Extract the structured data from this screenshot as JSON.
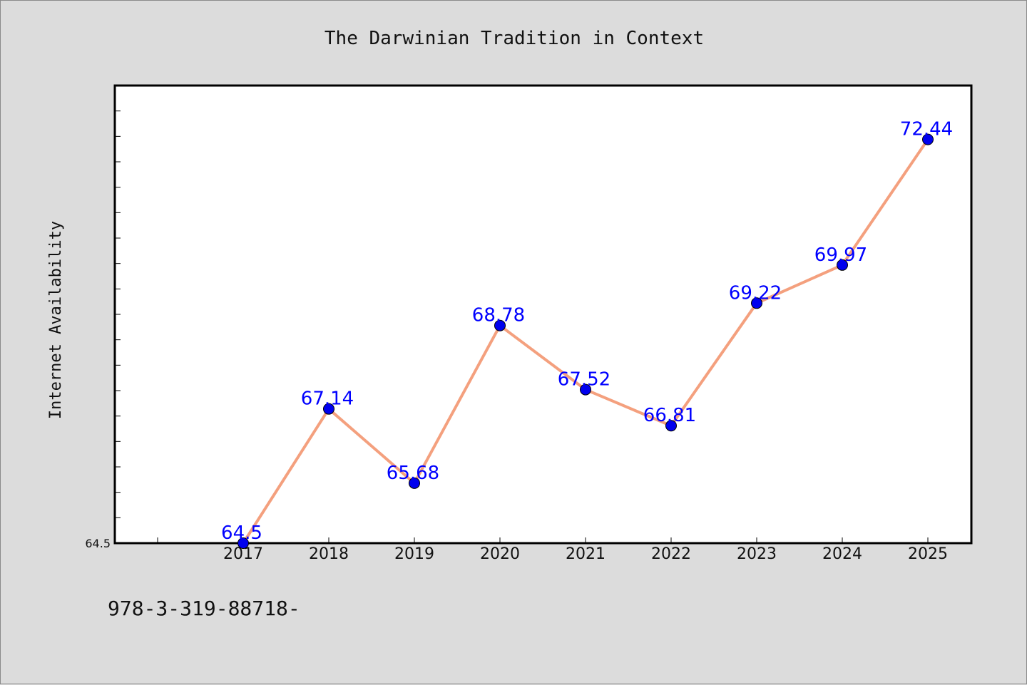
{
  "chart_data": {
    "type": "line",
    "title": "The Darwinian Tradition in Context",
    "xlabel": "",
    "ylabel": "Internet Availability",
    "categories": [
      "2017",
      "2018",
      "2019",
      "2020",
      "2021",
      "2022",
      "2023",
      "2024",
      "2025"
    ],
    "values": [
      64.5,
      67.14,
      65.68,
      68.78,
      67.52,
      66.81,
      69.22,
      69.97,
      72.44
    ],
    "data_labels": [
      "64.5",
      "67.14",
      "65.68",
      "68.78",
      "67.52",
      "66.81",
      "69.22",
      "69.97",
      "72.44"
    ],
    "ylim": [
      64.5,
      73.5
    ],
    "y_tick_labels": [
      "64.5"
    ],
    "grid": false,
    "legend": "none",
    "colors": {
      "line": "#f4a07e",
      "marker": "#0000ee",
      "label": "#0000ff",
      "background": "#dcdcdc",
      "plot_background": "#ffffff"
    }
  },
  "footer": {
    "text": "978-3-319-88718-"
  }
}
